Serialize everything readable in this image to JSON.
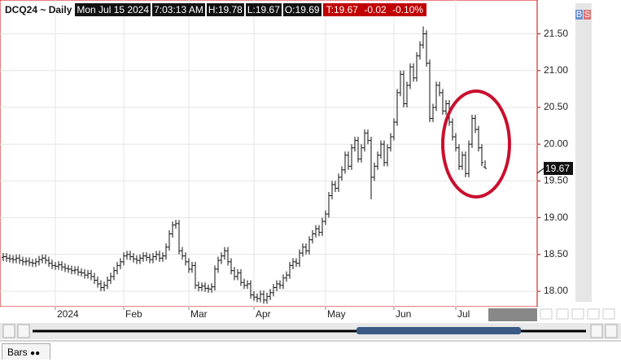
{
  "header": {
    "symbol": "DCQ24 ~ Daily",
    "info": [
      "Mon Jul 15 2024",
      "7:03:13 AM",
      "H:19.78",
      "L:19.67",
      "O:19.69"
    ],
    "last": [
      "T:19.67",
      "-0.02",
      "-0.10%"
    ]
  },
  "ui": {
    "buttons": [
      "B",
      "S"
    ],
    "tab": "Bars"
  },
  "chart_data": {
    "type": "ohlc",
    "color": "#111111",
    "grid": true,
    "ylim": [
      17.79,
      21.96
    ],
    "yticks": [
      {
        "value": 18,
        "label": "18.00"
      },
      {
        "value": 18.5,
        "label": "18.50"
      },
      {
        "value": 19,
        "label": "19.00"
      },
      {
        "value": 19.5,
        "label": "19.50"
      },
      {
        "value": 20,
        "label": "20.00"
      },
      {
        "value": 20.5,
        "label": "20.50"
      },
      {
        "value": 21,
        "label": "21.00"
      },
      {
        "value": 21.5,
        "label": "21.50"
      }
    ],
    "categories": [
      null,
      null,
      null,
      null,
      null,
      null,
      null,
      null,
      null,
      null,
      null,
      null,
      null,
      null,
      null,
      null,
      "2024",
      null,
      null,
      null,
      null,
      null,
      null,
      null,
      null,
      null,
      null,
      null,
      null,
      null,
      null,
      null,
      null,
      null,
      null,
      null,
      null,
      "Feb",
      null,
      null,
      null,
      null,
      null,
      null,
      null,
      null,
      null,
      null,
      null,
      null,
      null,
      null,
      null,
      null,
      null,
      null,
      null,
      "Mar",
      null,
      null,
      null,
      null,
      null,
      null,
      null,
      null,
      null,
      null,
      null,
      null,
      null,
      null,
      null,
      null,
      null,
      null,
      null,
      "Apr",
      null,
      null,
      null,
      null,
      null,
      null,
      null,
      null,
      null,
      null,
      null,
      null,
      null,
      null,
      null,
      null,
      null,
      null,
      null,
      null,
      null,
      "May",
      null,
      null,
      null,
      null,
      null,
      null,
      null,
      null,
      null,
      null,
      null,
      null,
      null,
      null,
      null,
      null,
      null,
      null,
      null,
      null,
      "Jun",
      null,
      null,
      null,
      null,
      null,
      null,
      null,
      null,
      null,
      null,
      null,
      null,
      null,
      null,
      null,
      null,
      null,
      null,
      "Jul",
      null,
      null,
      null,
      null,
      null,
      null,
      null,
      null,
      null
    ],
    "open": [
      18.46,
      18.47,
      18.45,
      18.44,
      18.43,
      18.45,
      18.42,
      18.4,
      18.41,
      18.39,
      18.38,
      18.4,
      18.43,
      18.45,
      18.42,
      18.38,
      18.35,
      18.34,
      18.36,
      18.33,
      18.31,
      18.3,
      18.28,
      18.29,
      18.26,
      18.25,
      18.22,
      18.24,
      18.2,
      18.15,
      18.1,
      18.05,
      18.08,
      18.15,
      18.2,
      18.28,
      18.35,
      18.4,
      18.48,
      18.5,
      18.47,
      18.44,
      18.42,
      18.45,
      18.48,
      18.46,
      18.43,
      18.47,
      18.5,
      18.45,
      18.48,
      18.6,
      18.78,
      18.9,
      18.92,
      18.55,
      18.48,
      18.4,
      18.3,
      18.35,
      18.08,
      18.05,
      18.07,
      18.04,
      18.03,
      18.06,
      18.3,
      18.42,
      18.48,
      18.55,
      18.4,
      18.28,
      18.2,
      18.25,
      18.12,
      18.08,
      18.1,
      17.95,
      17.92,
      17.9,
      17.96,
      17.88,
      17.93,
      17.98,
      18.05,
      18.1,
      18.08,
      18.18,
      18.22,
      18.35,
      18.4,
      18.38,
      18.52,
      18.6,
      18.55,
      18.7,
      18.78,
      18.85,
      18.8,
      18.95,
      19.05,
      19.3,
      19.45,
      19.4,
      19.55,
      19.65,
      19.85,
      19.7,
      19.95,
      20.05,
      19.8,
      19.95,
      20.15,
      20.05,
      19.55,
      19.7,
      19.85,
      20.0,
      19.75,
      19.95,
      20.1,
      20.3,
      20.7,
      20.95,
      20.55,
      20.8,
      21.05,
      20.9,
      21.2,
      21.35,
      21.5,
      21.1,
      20.35,
      20.5,
      20.8,
      20.7,
      20.45,
      20.55,
      20.3,
      20.1,
      19.95,
      19.7,
      19.85,
      19.6,
      20.0,
      20.35,
      20.2,
      19.95,
      19.69
    ],
    "high": [
      18.52,
      18.52,
      18.5,
      18.49,
      18.5,
      18.5,
      18.47,
      18.46,
      18.46,
      18.44,
      18.45,
      18.48,
      18.5,
      18.5,
      18.47,
      18.43,
      18.4,
      18.41,
      18.41,
      18.38,
      18.36,
      18.35,
      18.34,
      18.34,
      18.31,
      18.3,
      18.29,
      18.29,
      18.25,
      18.2,
      18.15,
      18.13,
      18.2,
      18.25,
      18.33,
      18.4,
      18.45,
      18.53,
      18.55,
      18.55,
      18.52,
      18.49,
      18.5,
      18.53,
      18.53,
      18.51,
      18.52,
      18.55,
      18.55,
      18.53,
      18.65,
      18.83,
      18.95,
      18.97,
      18.97,
      18.6,
      18.53,
      18.45,
      18.4,
      18.4,
      18.13,
      18.12,
      18.12,
      18.09,
      18.11,
      18.35,
      18.47,
      18.53,
      18.6,
      18.6,
      18.45,
      18.33,
      18.3,
      18.3,
      18.17,
      18.15,
      18.15,
      18.0,
      17.97,
      18.01,
      18.01,
      17.98,
      18.03,
      18.1,
      18.15,
      18.15,
      18.23,
      18.27,
      18.4,
      18.45,
      18.45,
      18.57,
      18.65,
      18.65,
      18.75,
      18.83,
      18.9,
      18.9,
      19.0,
      19.1,
      19.35,
      19.5,
      19.5,
      19.6,
      19.7,
      19.9,
      19.9,
      20.0,
      20.1,
      20.1,
      20.0,
      20.2,
      20.2,
      20.1,
      19.75,
      19.9,
      20.05,
      20.05,
      20.0,
      20.15,
      20.35,
      20.75,
      21.0,
      21.0,
      20.85,
      21.1,
      21.1,
      21.25,
      21.4,
      21.6,
      21.55,
      21.15,
      20.55,
      20.85,
      20.85,
      20.75,
      20.6,
      20.6,
      20.35,
      20.15,
      20.0,
      19.9,
      19.9,
      20.05,
      20.4,
      20.4,
      20.25,
      20.0,
      19.78
    ],
    "low": [
      18.41,
      18.4,
      18.39,
      18.38,
      18.38,
      18.37,
      18.35,
      18.35,
      18.34,
      18.33,
      18.33,
      18.35,
      18.38,
      18.37,
      18.33,
      18.3,
      18.29,
      18.29,
      18.28,
      18.26,
      18.25,
      18.23,
      18.23,
      18.21,
      18.2,
      18.17,
      18.17,
      18.15,
      18.1,
      18.05,
      18.0,
      18.0,
      18.03,
      18.1,
      18.15,
      18.23,
      18.3,
      18.35,
      18.43,
      18.42,
      18.39,
      18.37,
      18.37,
      18.4,
      18.41,
      18.38,
      18.38,
      18.42,
      18.4,
      18.4,
      18.43,
      18.55,
      18.73,
      18.85,
      18.5,
      18.43,
      18.35,
      18.25,
      18.25,
      18.03,
      18.0,
      18.0,
      17.99,
      17.98,
      17.98,
      18.01,
      18.25,
      18.37,
      18.43,
      18.35,
      18.23,
      18.15,
      18.15,
      18.07,
      18.03,
      18.03,
      17.9,
      17.87,
      17.85,
      17.85,
      17.83,
      17.83,
      17.88,
      17.93,
      18.0,
      18.03,
      18.03,
      18.13,
      18.17,
      18.3,
      18.33,
      18.33,
      18.47,
      18.5,
      18.5,
      18.65,
      18.73,
      18.75,
      18.75,
      18.9,
      19.0,
      19.25,
      19.35,
      19.35,
      19.5,
      19.6,
      19.65,
      19.65,
      19.9,
      19.75,
      19.75,
      19.9,
      20.0,
      19.25,
      19.5,
      19.65,
      19.8,
      19.7,
      19.7,
      19.9,
      20.05,
      20.25,
      20.65,
      20.5,
      20.5,
      20.75,
      20.85,
      20.85,
      21.15,
      21.3,
      21.05,
      20.3,
      20.3,
      20.45,
      20.65,
      20.4,
      20.4,
      20.25,
      20.05,
      19.9,
      19.65,
      19.65,
      19.55,
      19.55,
      19.95,
      20.15,
      19.9,
      19.7,
      19.67
    ],
    "close": [
      18.47,
      18.45,
      18.44,
      18.43,
      18.45,
      18.42,
      18.4,
      18.41,
      18.39,
      18.38,
      18.4,
      18.43,
      18.45,
      18.42,
      18.38,
      18.35,
      18.34,
      18.36,
      18.33,
      18.31,
      18.3,
      18.28,
      18.29,
      18.26,
      18.25,
      18.22,
      18.24,
      18.2,
      18.15,
      18.1,
      18.05,
      18.08,
      18.15,
      18.2,
      18.28,
      18.35,
      18.4,
      18.48,
      18.5,
      18.47,
      18.44,
      18.42,
      18.45,
      18.48,
      18.46,
      18.43,
      18.47,
      18.5,
      18.45,
      18.48,
      18.6,
      18.78,
      18.9,
      18.92,
      18.55,
      18.48,
      18.4,
      18.3,
      18.35,
      18.08,
      18.05,
      18.07,
      18.04,
      18.03,
      18.06,
      18.3,
      18.42,
      18.48,
      18.55,
      18.4,
      18.28,
      18.2,
      18.25,
      18.12,
      18.08,
      18.1,
      17.95,
      17.92,
      17.9,
      17.96,
      17.88,
      17.93,
      17.98,
      18.05,
      18.1,
      18.08,
      18.18,
      18.22,
      18.35,
      18.4,
      18.38,
      18.52,
      18.6,
      18.55,
      18.7,
      18.78,
      18.85,
      18.8,
      18.95,
      19.05,
      19.3,
      19.45,
      19.4,
      19.55,
      19.65,
      19.85,
      19.7,
      19.95,
      20.05,
      19.8,
      19.95,
      20.15,
      20.05,
      19.55,
      19.7,
      19.85,
      20.0,
      19.75,
      19.95,
      20.1,
      20.3,
      20.7,
      20.95,
      20.55,
      20.8,
      21.05,
      20.9,
      21.2,
      21.35,
      21.5,
      21.1,
      20.35,
      20.5,
      20.8,
      20.7,
      20.45,
      20.55,
      20.3,
      20.1,
      19.95,
      19.7,
      19.85,
      19.6,
      20.0,
      20.35,
      20.2,
      19.95,
      19.75,
      19.67
    ]
  }
}
